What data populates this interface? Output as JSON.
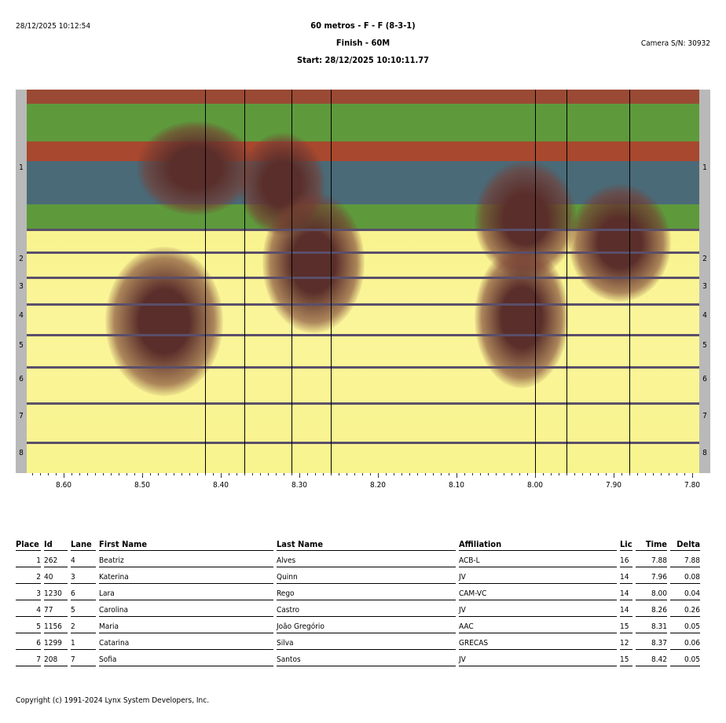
{
  "header": {
    "printed_at": "28/12/2025 10:12:54",
    "event_title": "60 metros - F - F (8-3-1)",
    "subtitle": "Finish - 60M",
    "start": "Start: 28/12/2025 10:10:11.77",
    "camera": "Camera S/N: 30932"
  },
  "photo": {
    "lane_labels": [
      "1",
      "2",
      "3",
      "4",
      "5",
      "6",
      "7",
      "8"
    ],
    "axis_ticks": [
      "8.60",
      "8.50",
      "8.40",
      "8.30",
      "8.20",
      "8.10",
      "8.00",
      "7.90",
      "7.80"
    ],
    "axis_range": [
      8.65,
      7.79
    ],
    "time_lines": [
      8.42,
      8.37,
      8.31,
      8.26,
      8.0,
      7.96,
      7.88
    ],
    "colors": {
      "track_yellow": "#f6f28a",
      "lane_line": "#5a4f6a",
      "band_red": "#a8482e",
      "band_green": "#5e9a3c",
      "band_blue": "#4a6a78"
    }
  },
  "results": {
    "columns": [
      "Place",
      "Id",
      "Lane",
      "First Name",
      "Last Name",
      "Affiliation",
      "Lic",
      "Time",
      "Delta"
    ],
    "rows": [
      [
        "1",
        "262",
        "4",
        "Beatriz",
        "Alves",
        "ACB-L",
        "16",
        "7.88",
        "7.88"
      ],
      [
        "2",
        "40",
        "3",
        "Katerina",
        "Quinn",
        "JV",
        "14",
        "7.96",
        "0.08"
      ],
      [
        "3",
        "1230",
        "6",
        "Lara",
        "Rego",
        "CAM-VC",
        "14",
        "8.00",
        "0.04"
      ],
      [
        "4",
        "77",
        "5",
        "Carolina",
        "Castro",
        "JV",
        "14",
        "8.26",
        "0.26"
      ],
      [
        "5",
        "1156",
        "2",
        "Maria",
        "João Gregório",
        "AAC",
        "15",
        "8.31",
        "0.05"
      ],
      [
        "6",
        "1299",
        "1",
        "Catarina",
        "Silva",
        "GRECAS",
        "12",
        "8.37",
        "0.06"
      ],
      [
        "7",
        "208",
        "7",
        "Sofia",
        "Santos",
        "JV",
        "15",
        "8.42",
        "0.05"
      ]
    ]
  },
  "footer": {
    "copyright": "Copyright (c) 1991-2024 Lynx System Developers, Inc."
  }
}
